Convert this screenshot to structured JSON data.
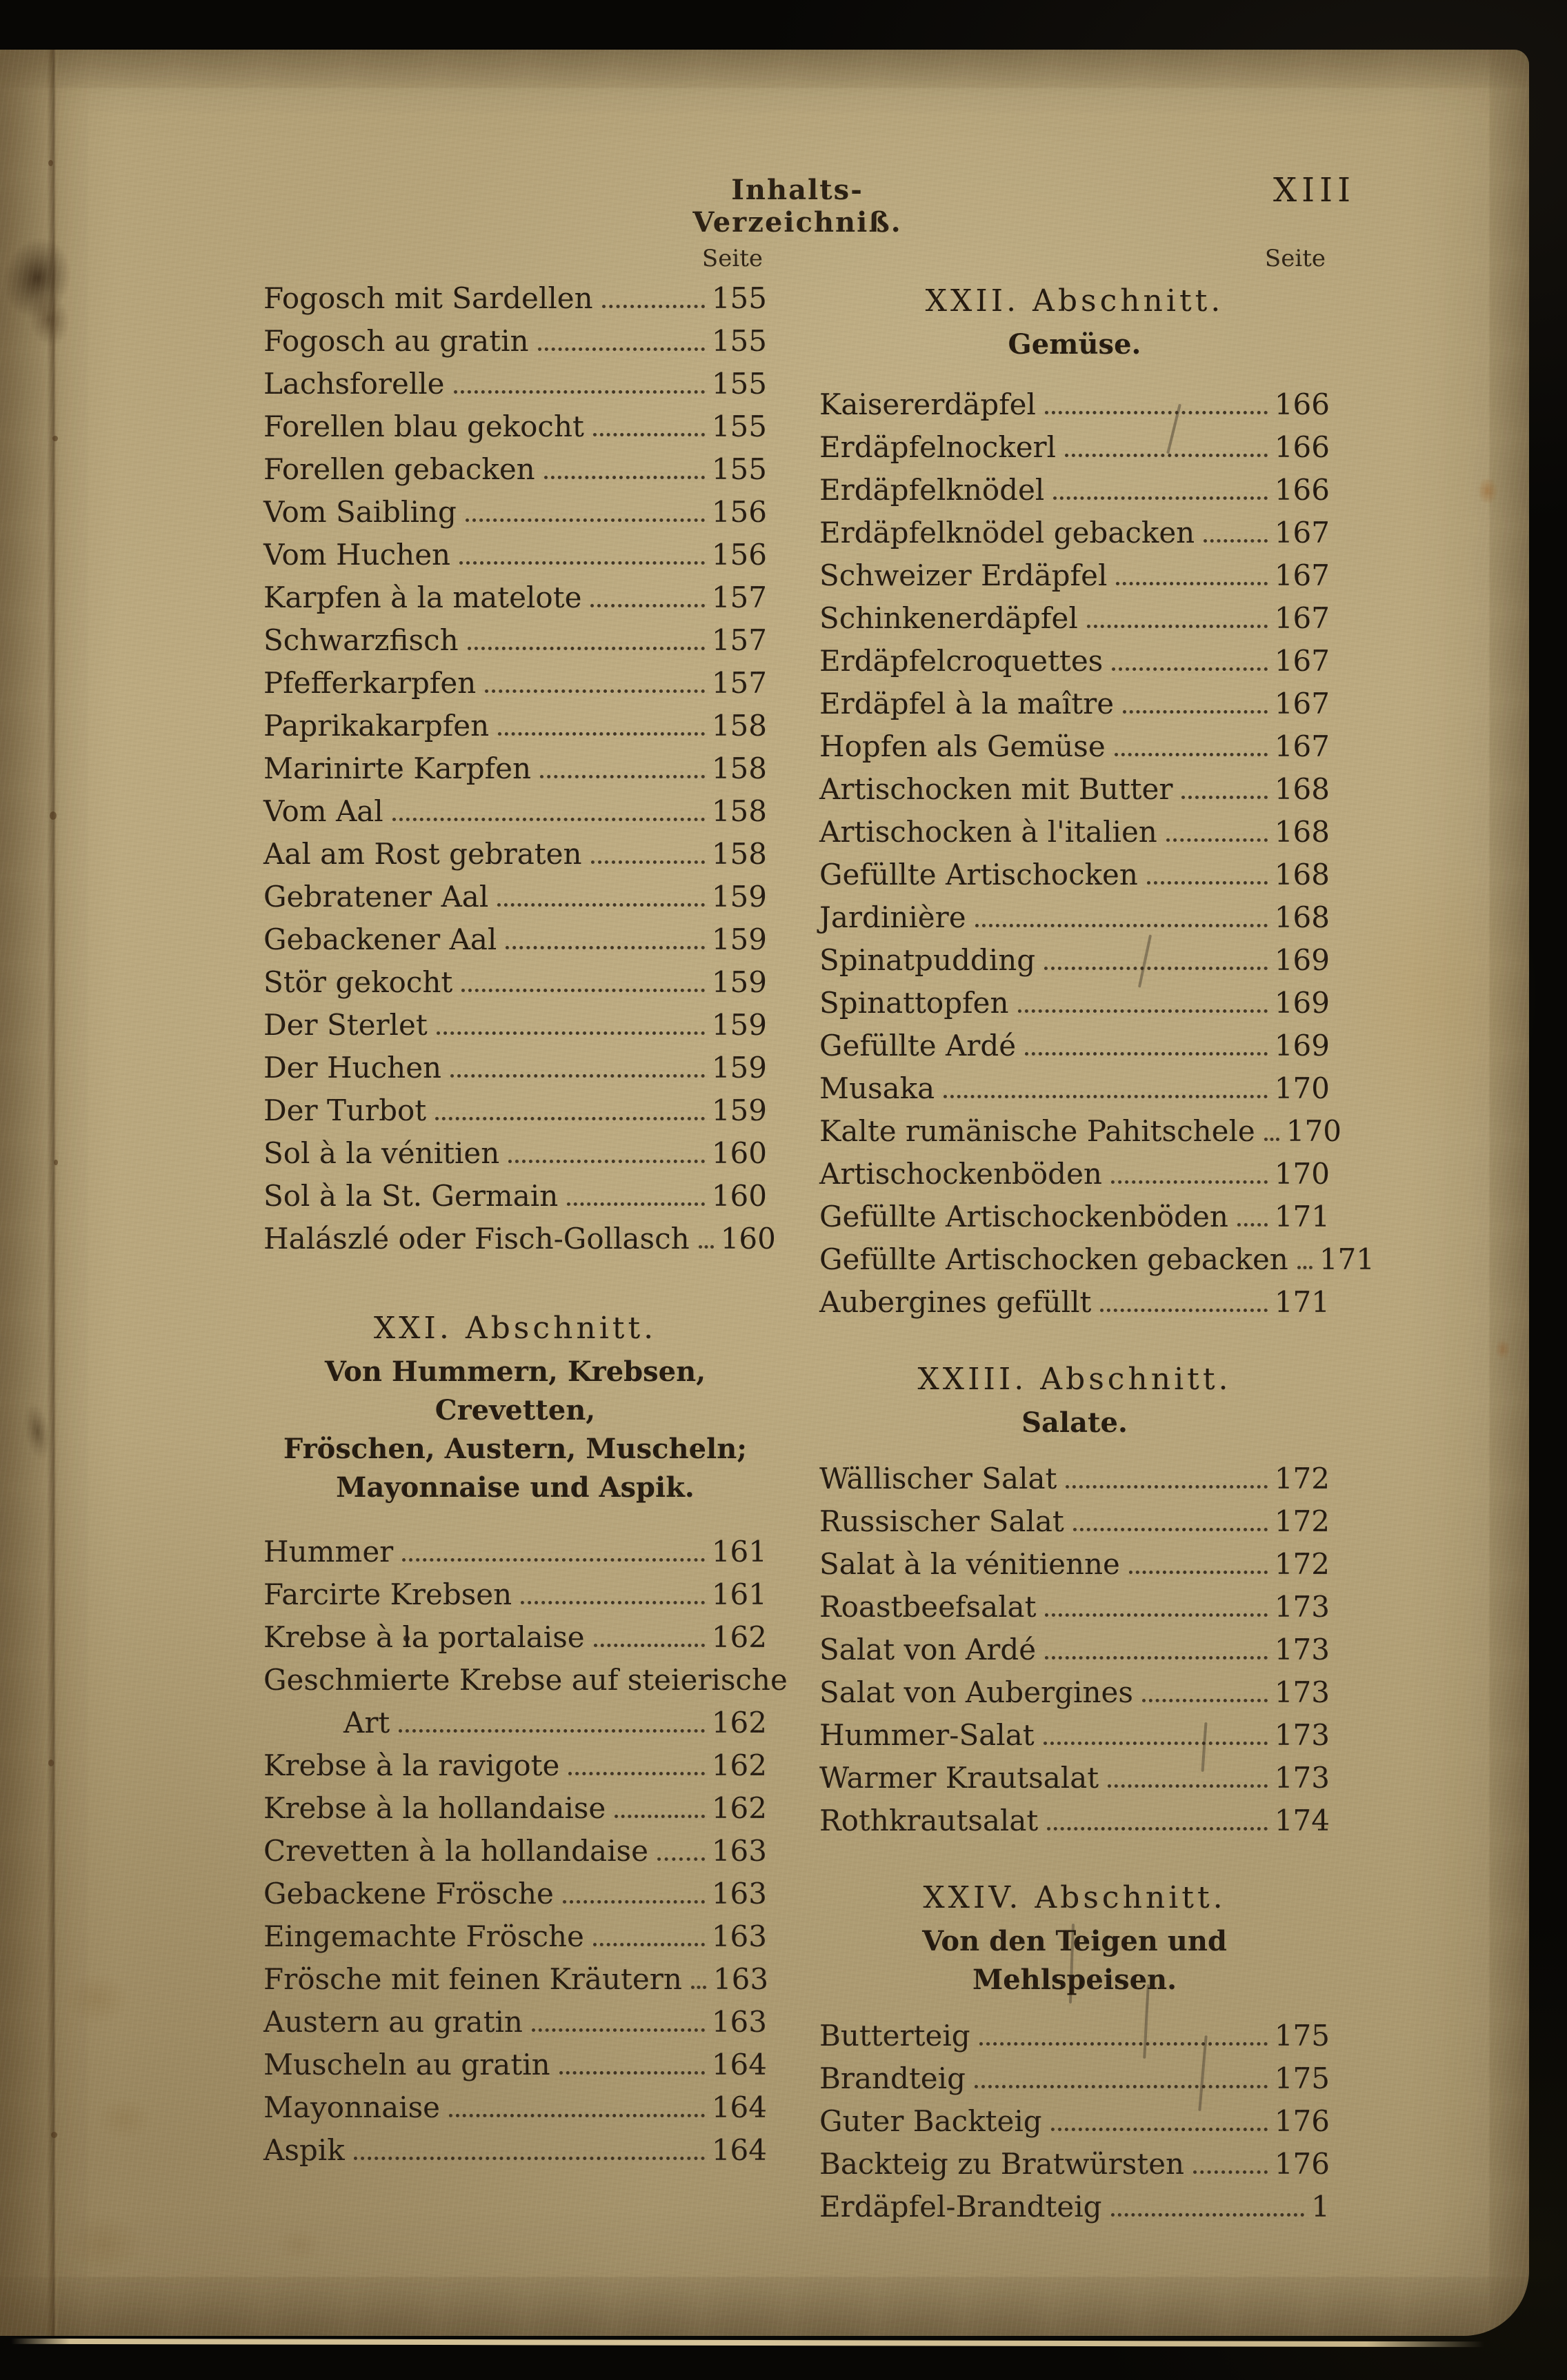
{
  "page": {
    "running_header": "Inhalts-Verzeichniß.",
    "folio": "XIII",
    "seite_label": "Seite"
  },
  "colors": {
    "paper": "#b7a57d",
    "ink": "#241a10",
    "background": "#090806"
  },
  "left_column": {
    "blocks": [
      {
        "type": "entry",
        "title": "Fogosch mit Sardellen",
        "page": "155"
      },
      {
        "type": "entry",
        "title": "Fogosch au gratin",
        "page": "155"
      },
      {
        "type": "entry",
        "title": "Lachsforelle",
        "page": "155"
      },
      {
        "type": "entry",
        "title": "Forellen blau gekocht",
        "page": "155"
      },
      {
        "type": "entry",
        "title": "Forellen gebacken",
        "page": "155"
      },
      {
        "type": "entry",
        "title": "Vom Saibling",
        "page": "156"
      },
      {
        "type": "entry",
        "title": "Vom Huchen",
        "page": "156"
      },
      {
        "type": "entry",
        "title": "Karpfen à la matelote",
        "page": "157"
      },
      {
        "type": "entry",
        "title": "Schwarzfisch",
        "page": "157"
      },
      {
        "type": "entry",
        "title": "Pfefferkarpfen",
        "page": "157"
      },
      {
        "type": "entry",
        "title": "Paprikakarpfen",
        "page": "158"
      },
      {
        "type": "entry",
        "title": "Marinirte Karpfen",
        "page": "158"
      },
      {
        "type": "entry",
        "title": "Vom Aal",
        "page": "158"
      },
      {
        "type": "entry",
        "title": "Aal am Rost gebraten",
        "page": "158"
      },
      {
        "type": "entry",
        "title": "Gebratener Aal",
        "page": "159"
      },
      {
        "type": "entry",
        "title": "Gebackener Aal",
        "page": "159"
      },
      {
        "type": "entry",
        "title": "Stör gekocht",
        "page": "159"
      },
      {
        "type": "entry",
        "title": "Der Sterlet",
        "page": "159"
      },
      {
        "type": "entry",
        "title": "Der Huchen",
        "page": "159"
      },
      {
        "type": "entry",
        "title": "Der Turbot",
        "page": "159"
      },
      {
        "type": "entry",
        "title": "Sol à la vénitien",
        "page": "160"
      },
      {
        "type": "entry",
        "title": "Sol à la St. Germain",
        "page": "160"
      },
      {
        "type": "entry",
        "title": "Halászlé oder Fisch-Gollasch",
        "page": "160"
      },
      {
        "type": "section",
        "number": "XXI. Abschnitt.",
        "subtitle": [
          "Von Hummern, Krebsen, Crevetten,",
          "Fröschen, Austern, Muscheln;",
          "Mayonnaise und Aspik."
        ]
      },
      {
        "type": "entry",
        "title": "Hummer",
        "page": "161"
      },
      {
        "type": "entry",
        "title": "Farcirte Krebsen",
        "page": "161"
      },
      {
        "type": "entry",
        "title": "Krebse à la portalaise",
        "page": "162"
      },
      {
        "type": "entry",
        "title": "Geschmierte Krebse auf steierische",
        "page": ""
      },
      {
        "type": "entry",
        "title": "Art",
        "page": "162",
        "indent": true
      },
      {
        "type": "entry",
        "title": "Krebse à la ravigote",
        "page": "162"
      },
      {
        "type": "entry",
        "title": "Krebse à la hollandaise",
        "page": "162"
      },
      {
        "type": "entry",
        "title": "Crevetten à la hollandaise",
        "page": "163"
      },
      {
        "type": "entry",
        "title": "Gebackene Frösche",
        "page": "163"
      },
      {
        "type": "entry",
        "title": "Eingemachte Frösche",
        "page": "163"
      },
      {
        "type": "entry",
        "title": "Frösche mit feinen Kräutern",
        "page": "163"
      },
      {
        "type": "entry",
        "title": "Austern au gratin",
        "page": "163"
      },
      {
        "type": "entry",
        "title": "Muscheln au gratin",
        "page": "164"
      },
      {
        "type": "entry",
        "title": "Mayonnaise",
        "page": "164"
      },
      {
        "type": "entry",
        "title": "Aspik",
        "page": "164"
      }
    ]
  },
  "right_column": {
    "blocks": [
      {
        "type": "section",
        "number": "XXII. Abschnitt.",
        "subtitle": [
          "Gemüse."
        ]
      },
      {
        "type": "entry",
        "title": "Kaisererdäpfel",
        "page": "166"
      },
      {
        "type": "entry",
        "title": "Erdäpfelnockerl",
        "page": "166"
      },
      {
        "type": "entry",
        "title": "Erdäpfelknödel",
        "page": "166"
      },
      {
        "type": "entry",
        "title": "Erdäpfelknödel gebacken",
        "page": "167"
      },
      {
        "type": "entry",
        "title": "Schweizer Erdäpfel",
        "page": "167"
      },
      {
        "type": "entry",
        "title": "Schinkenerdäpfel",
        "page": "167"
      },
      {
        "type": "entry",
        "title": "Erdäpfelcroquettes",
        "page": "167"
      },
      {
        "type": "entry",
        "title": "Erdäpfel à la maître",
        "page": "167"
      },
      {
        "type": "entry",
        "title": "Hopfen als Gemüse",
        "page": "167"
      },
      {
        "type": "entry",
        "title": "Artischocken mit Butter",
        "page": "168"
      },
      {
        "type": "entry",
        "title": "Artischocken à l'italien",
        "page": "168"
      },
      {
        "type": "entry",
        "title": "Gefüllte Artischocken",
        "page": "168"
      },
      {
        "type": "entry",
        "title": "Jardinière",
        "page": "168"
      },
      {
        "type": "entry",
        "title": "Spinatpudding",
        "page": "169"
      },
      {
        "type": "entry",
        "title": "Spinattopfen",
        "page": "169"
      },
      {
        "type": "entry",
        "title": "Gefüllte Ardé",
        "page": "169"
      },
      {
        "type": "entry",
        "title": "Musaka",
        "page": "170"
      },
      {
        "type": "entry",
        "title": "Kalte rumänische Pahitschele",
        "page": "170"
      },
      {
        "type": "entry",
        "title": "Artischockenböden",
        "page": "170"
      },
      {
        "type": "entry",
        "title": "Gefüllte Artischockenböden",
        "page": "171"
      },
      {
        "type": "entry",
        "title": "Gefüllte Artischocken gebacken",
        "page": "171"
      },
      {
        "type": "entry",
        "title": "Aubergines gefüllt",
        "page": "171"
      },
      {
        "type": "section",
        "number": "XXIII. Abschnitt.",
        "subtitle": [
          "Salate."
        ]
      },
      {
        "type": "entry",
        "title": "Wällischer Salat",
        "page": "172"
      },
      {
        "type": "entry",
        "title": "Russischer Salat",
        "page": "172"
      },
      {
        "type": "entry",
        "title": "Salat à la vénitienne",
        "page": "172"
      },
      {
        "type": "entry",
        "title": "Roastbeefsalat",
        "page": "173"
      },
      {
        "type": "entry",
        "title": "Salat von Ardé",
        "page": "173"
      },
      {
        "type": "entry",
        "title": "Salat von Aubergines",
        "page": "173"
      },
      {
        "type": "entry",
        "title": "Hummer-Salat",
        "page": "173"
      },
      {
        "type": "entry",
        "title": "Warmer Krautsalat",
        "page": "173"
      },
      {
        "type": "entry",
        "title": "Rothkrautsalat",
        "page": "174"
      },
      {
        "type": "section",
        "number": "XXIV. Abschnitt.",
        "subtitle": [
          "Von den Teigen und Mehlspeisen."
        ]
      },
      {
        "type": "entry",
        "title": "Butterteig",
        "page": "175"
      },
      {
        "type": "entry",
        "title": "Brandteig",
        "page": "175"
      },
      {
        "type": "entry",
        "title": "Guter Backteig",
        "page": "176"
      },
      {
        "type": "entry",
        "title": "Backteig zu Bratwürsten",
        "page": "176"
      },
      {
        "type": "entry",
        "title": "Erdäpfel-Brandteig",
        "page": "1"
      }
    ]
  }
}
